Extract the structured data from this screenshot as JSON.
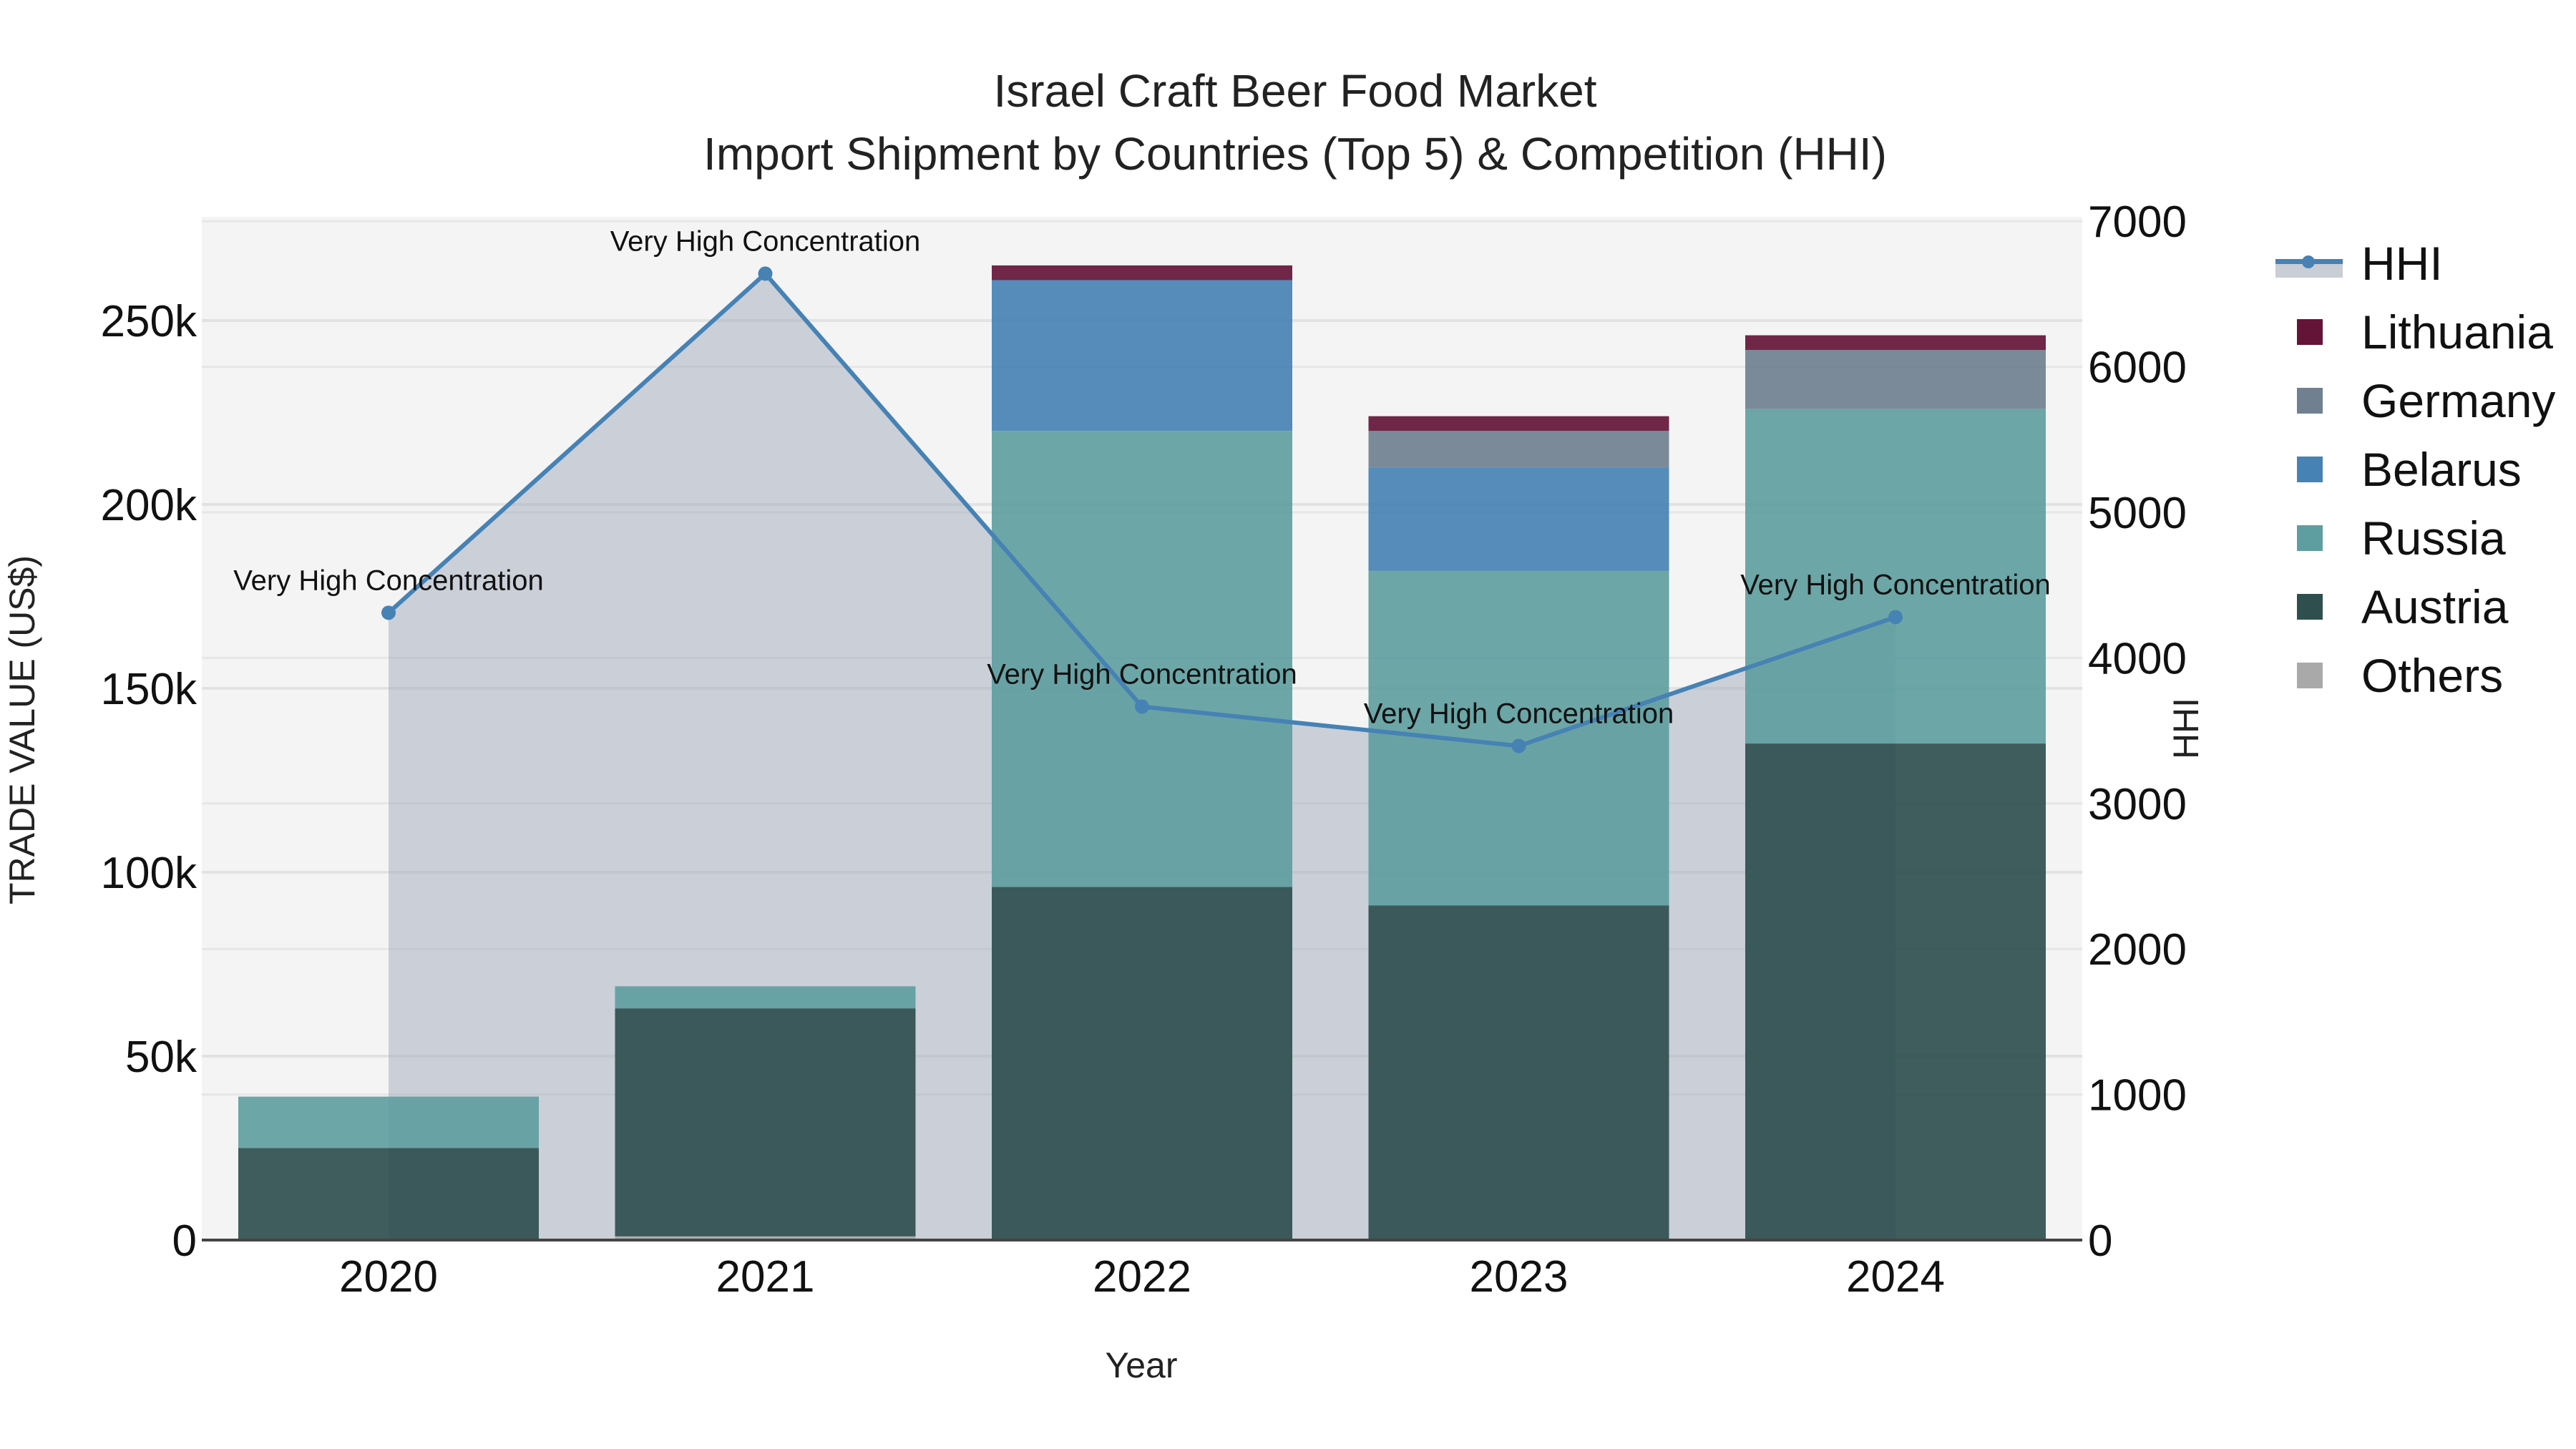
{
  "title": {
    "line1": "Israel Craft Beer Food Market",
    "line2": "Import Shipment by Countries (Top 5) & Competition (HHI)"
  },
  "axes": {
    "x_title": "Year",
    "y_left_title": "TRADE VALUE (US$)",
    "y_right_title": "HHI",
    "x_ticks": [
      "2020",
      "2021",
      "2022",
      "2023",
      "2024"
    ],
    "y_left_ticks": [
      "0",
      "50k",
      "100k",
      "150k",
      "200k",
      "250k"
    ],
    "y_right_ticks": [
      "0",
      "1000",
      "2000",
      "3000",
      "4000",
      "5000",
      "6000",
      "7000"
    ]
  },
  "legend": {
    "items": [
      {
        "label": "HHI",
        "type": "line",
        "color": "#4682b4"
      },
      {
        "label": "Lithuania",
        "type": "bar",
        "color": "#641436"
      },
      {
        "label": "Germany",
        "type": "bar",
        "color": "#708090"
      },
      {
        "label": "Belarus",
        "type": "bar",
        "color": "#4682b4"
      },
      {
        "label": "Russia",
        "type": "bar",
        "color": "#5f9ea0"
      },
      {
        "label": "Austria",
        "type": "bar",
        "color": "#2f4f4f"
      },
      {
        "label": "Others",
        "type": "bar",
        "color": "#a9a9a9"
      }
    ]
  },
  "chart_data": {
    "type": "bar",
    "stacked": true,
    "title": "Israel Craft Beer Food Market — Import Shipment by Countries (Top 5) & Competition (HHI)",
    "xlabel": "Year",
    "ylabel": "TRADE VALUE (US$)",
    "y2label": "HHI",
    "ylim": [
      0,
      278000
    ],
    "y2lim": [
      0,
      7000
    ],
    "grid": true,
    "legend_position": "right",
    "categories": [
      "2020",
      "2021",
      "2022",
      "2023",
      "2024"
    ],
    "series": [
      {
        "name": "Others",
        "color": "#a9a9a9",
        "values": [
          0,
          1000,
          0,
          0,
          0
        ]
      },
      {
        "name": "Austria",
        "color": "#2f4f4f",
        "values": [
          25000,
          62000,
          96000,
          91000,
          135000
        ]
      },
      {
        "name": "Russia",
        "color": "#5f9ea0",
        "values": [
          14000,
          6000,
          124000,
          91000,
          91000
        ]
      },
      {
        "name": "Belarus",
        "color": "#4682b4",
        "values": [
          0,
          0,
          41000,
          28000,
          0
        ]
      },
      {
        "name": "Germany",
        "color": "#708090",
        "values": [
          0,
          0,
          0,
          10000,
          16000
        ]
      },
      {
        "name": "Lithuania",
        "color": "#641436",
        "values": [
          0,
          0,
          4000,
          4000,
          4000
        ]
      }
    ],
    "line_series": {
      "name": "HHI",
      "axis": "right",
      "color": "#4682b4",
      "fill": "tozeroy",
      "values": [
        4310,
        6640,
        3665,
        3395,
        4280
      ],
      "annotations": [
        "Very High Concentration",
        "Very High Concentration",
        "Very High Concentration",
        "Very High Concentration",
        "Very High Concentration"
      ]
    }
  }
}
